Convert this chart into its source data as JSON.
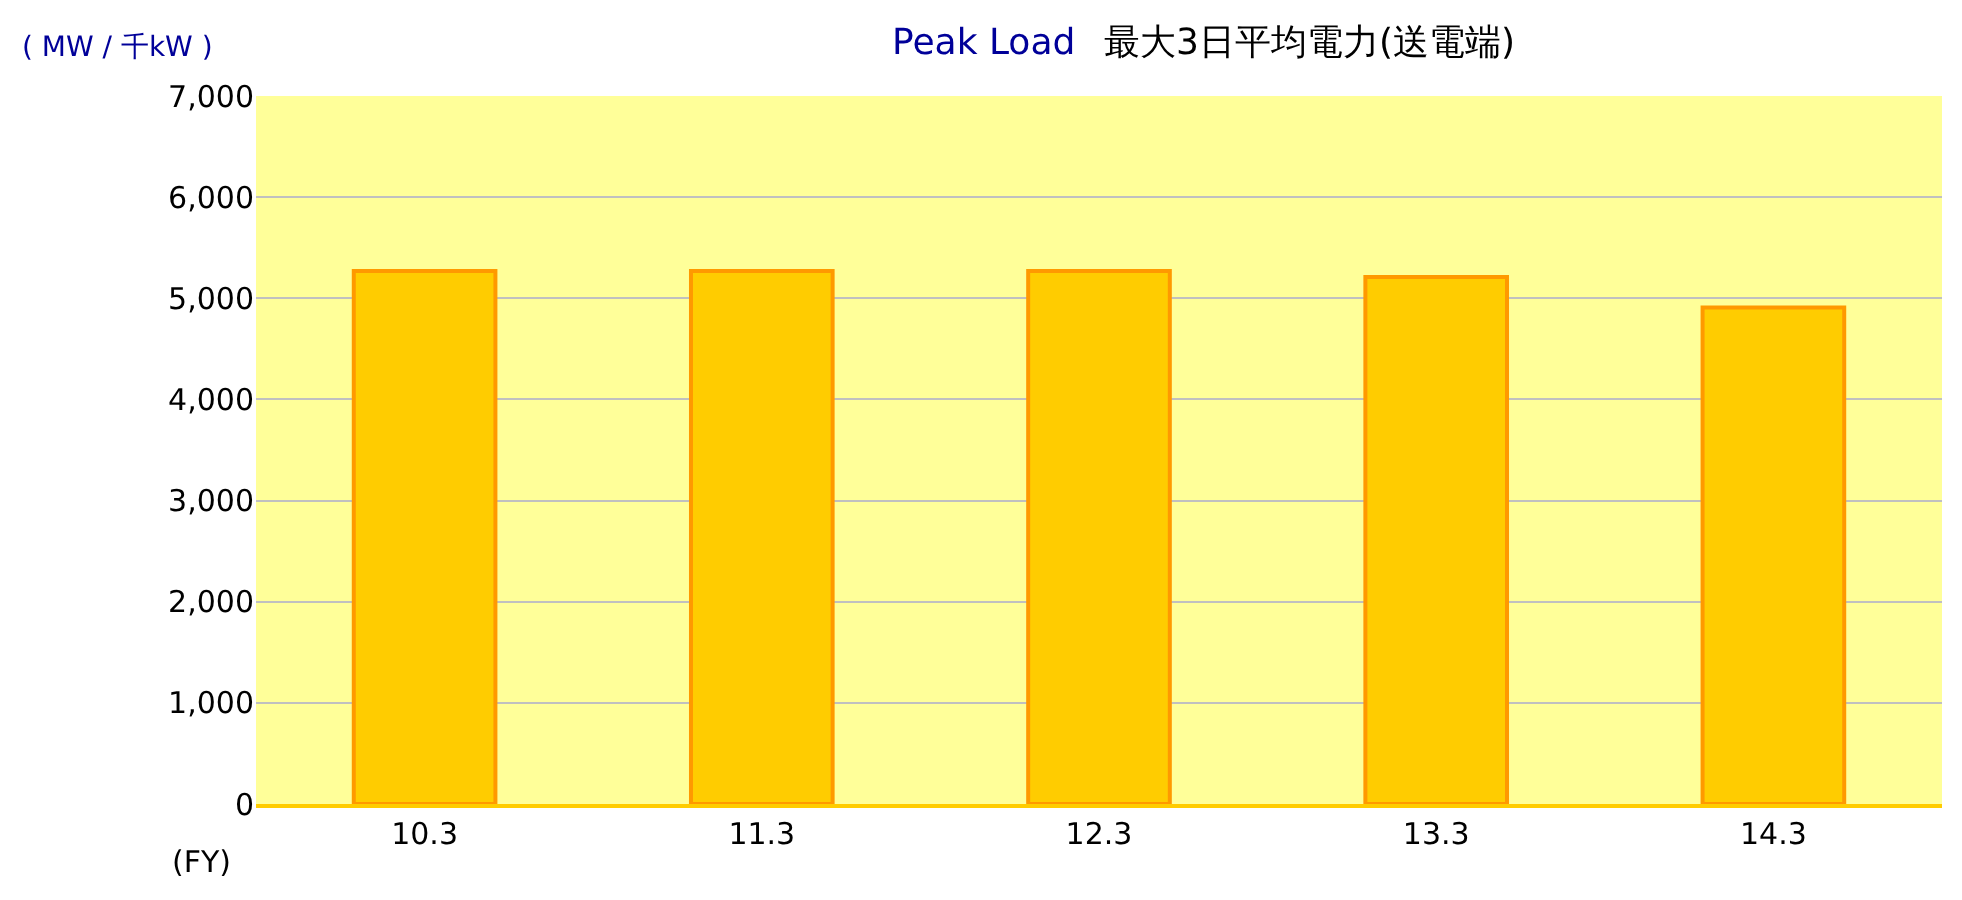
{
  "chart_data": {
    "type": "bar",
    "title": "Peak Load",
    "subtitle": "最大3日平均電力(送電端)",
    "ylabel": "( MW / 千kW )",
    "xlabel": "(FY)",
    "categories": [
      "10.3",
      "11.3",
      "12.3",
      "13.3",
      "14.3"
    ],
    "values": [
      5270,
      5270,
      5270,
      5210,
      4910
    ],
    "color": "#ffcc00",
    "ylim": [
      0,
      7000
    ],
    "yticks": [
      {
        "value": 0,
        "label": "0"
      },
      {
        "value": 1000,
        "label": "1,000"
      },
      {
        "value": 2000,
        "label": "2,000"
      },
      {
        "value": 3000,
        "label": "3,000"
      },
      {
        "value": 4000,
        "label": "4,000"
      },
      {
        "value": 5000,
        "label": "5,000"
      },
      {
        "value": 6000,
        "label": "6,000"
      },
      {
        "value": 7000,
        "label": "7,000"
      }
    ],
    "grid": "y"
  }
}
